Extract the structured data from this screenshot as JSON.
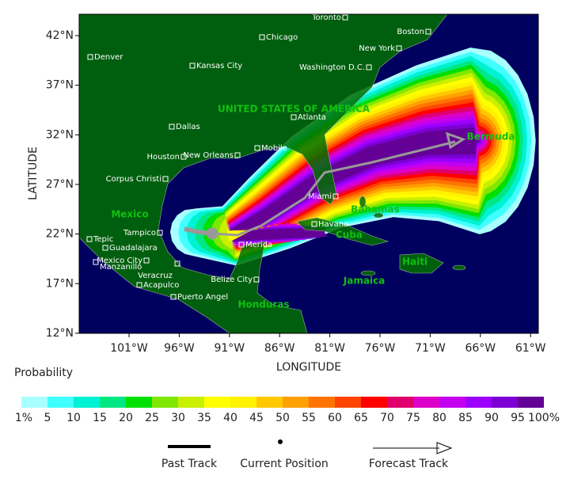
{
  "map": {
    "y_axis_label": "LATITUDE",
    "x_axis_label": "LONGITUDE",
    "lat_ticks": [
      "42°N",
      "37°N",
      "32°N",
      "27°N",
      "22°N",
      "17°N",
      "12°N"
    ],
    "lon_ticks": [
      "101°W",
      "96°W",
      "91°W",
      "86°W",
      "81°W",
      "76°W",
      "71°W",
      "66°W",
      "61°W"
    ],
    "cities": [
      "Toronto",
      "Boston",
      "Chicago",
      "New York",
      "Denver",
      "Kansas City",
      "Washington D.C.",
      "Atlanta",
      "Dallas",
      "Houston",
      "New Orleans",
      "Mobile",
      "Corpus Christi",
      "Miami",
      "Havana",
      "Tepic",
      "Tampico",
      "Guadalajara",
      "Mexico City",
      "Manzanillo",
      "Merida",
      "Veracruz",
      "Belize City",
      "Acapulco",
      "Puerto Angel"
    ],
    "regions": [
      "UNITED STATES OF AMERICA",
      "Mexico",
      "Bahamas",
      "Cuba",
      "Haiti",
      "Jamaica",
      "Honduras",
      "Bermuda"
    ]
  },
  "legend": {
    "title": "Probability",
    "labels": [
      "1%",
      "5",
      "10",
      "15",
      "20",
      "25",
      "30",
      "35",
      "40",
      "45",
      "50",
      "55",
      "60",
      "65",
      "70",
      "75",
      "80",
      "85",
      "90",
      "95",
      "100%"
    ],
    "colors": [
      "#a8ffff",
      "#40ffff",
      "#00f2d4",
      "#00e884",
      "#00e000",
      "#80e800",
      "#c8f000",
      "#ffff00",
      "#fff200",
      "#ffc800",
      "#ffa000",
      "#ff7400",
      "#ff4400",
      "#ff0000",
      "#e0006c",
      "#dc00c8",
      "#c400f0",
      "#9c00ff",
      "#7c00d4",
      "#640096"
    ],
    "track_labels": [
      "Past Track",
      "Current Position",
      "Forecast Track"
    ]
  }
}
